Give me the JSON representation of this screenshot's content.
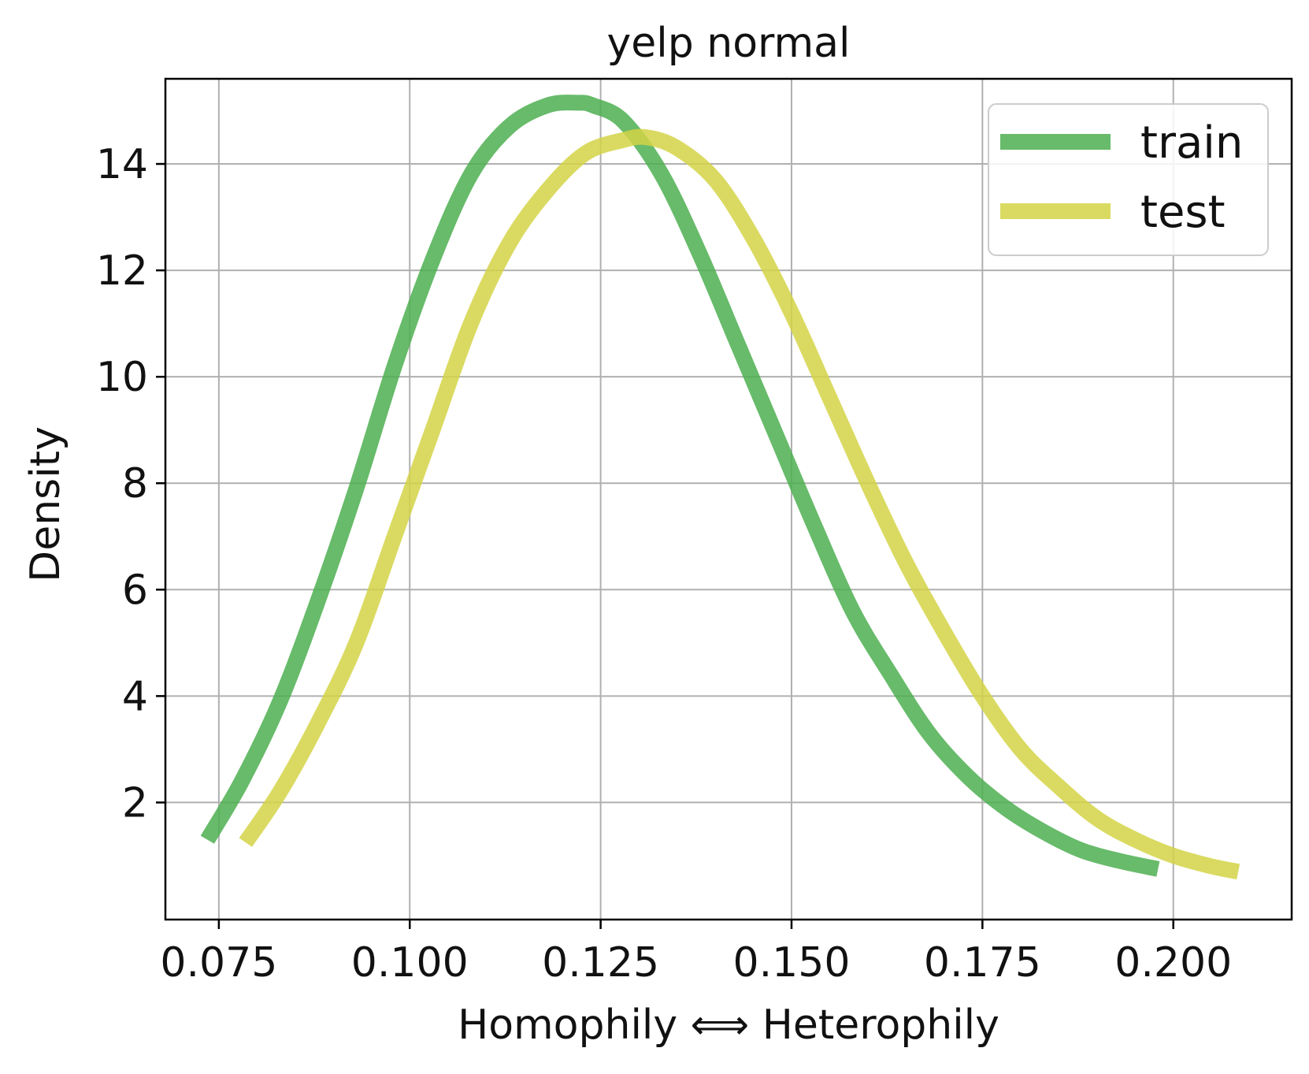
{
  "chart_data": {
    "type": "line",
    "title": "yelp normal",
    "xlabel": "Homophily ⟺ Heterophily",
    "ylabel": "Density",
    "xlim": [
      0.068,
      0.2155
    ],
    "ylim": [
      -0.2,
      15.6
    ],
    "xticks": [
      0.075,
      0.1,
      0.125,
      0.15,
      0.175,
      0.2
    ],
    "xtick_labels": [
      "0.075",
      "0.100",
      "0.125",
      "0.150",
      "0.175",
      "0.200"
    ],
    "yticks": [
      2,
      4,
      6,
      8,
      10,
      12,
      14
    ],
    "ytick_labels": [
      "2",
      "4",
      "6",
      "8",
      "10",
      "12",
      "14"
    ],
    "grid": true,
    "legend_position": "top-right",
    "series": [
      {
        "name": "train",
        "color": "#4caf50",
        "x": [
          0.0735,
          0.078,
          0.083,
          0.088,
          0.093,
          0.098,
          0.103,
          0.108,
          0.113,
          0.118,
          0.122,
          0.124,
          0.128,
          0.133,
          0.138,
          0.143,
          0.148,
          0.153,
          0.158,
          0.163,
          0.168,
          0.173,
          0.178,
          0.183,
          0.188,
          0.193,
          0.198
        ],
        "y": [
          1.3,
          2.4,
          3.9,
          5.8,
          7.9,
          10.2,
          12.2,
          13.8,
          14.7,
          15.1,
          15.15,
          15.1,
          14.8,
          13.8,
          12.3,
          10.6,
          8.9,
          7.2,
          5.6,
          4.4,
          3.3,
          2.5,
          1.9,
          1.45,
          1.1,
          0.9,
          0.75
        ]
      },
      {
        "name": "test",
        "color": "#d4d446",
        "x": [
          0.0785,
          0.083,
          0.088,
          0.093,
          0.098,
          0.103,
          0.108,
          0.113,
          0.118,
          0.123,
          0.128,
          0.131,
          0.135,
          0.14,
          0.145,
          0.15,
          0.155,
          0.16,
          0.165,
          0.17,
          0.175,
          0.18,
          0.185,
          0.19,
          0.195,
          0.2,
          0.205,
          0.2085
        ],
        "y": [
          1.25,
          2.2,
          3.5,
          5.0,
          7.0,
          9.0,
          11.0,
          12.5,
          13.5,
          14.2,
          14.45,
          14.5,
          14.3,
          13.7,
          12.6,
          11.2,
          9.6,
          8.0,
          6.5,
          5.2,
          4.0,
          3.0,
          2.3,
          1.7,
          1.3,
          1.0,
          0.8,
          0.7
        ]
      }
    ]
  }
}
